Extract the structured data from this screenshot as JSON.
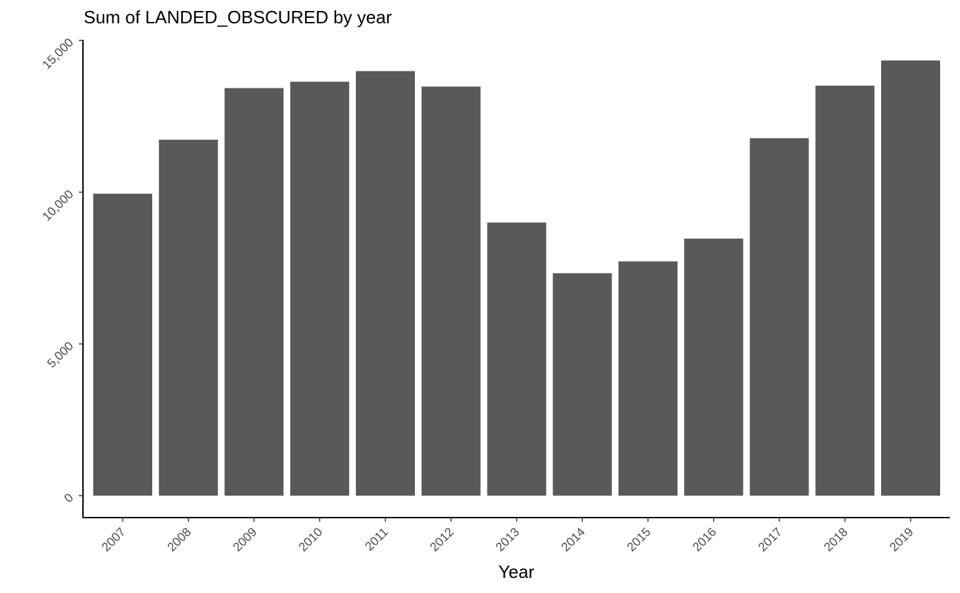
{
  "chart_data": {
    "type": "bar",
    "title": "Sum of LANDED_OBSCURED by year",
    "xlabel": "Year",
    "ylabel": "",
    "categories": [
      "2007",
      "2008",
      "2009",
      "2010",
      "2011",
      "2012",
      "2013",
      "2014",
      "2015",
      "2016",
      "2017",
      "2018",
      "2019"
    ],
    "values": [
      9950,
      11730,
      13430,
      13640,
      13990,
      13480,
      9000,
      7330,
      7720,
      8470,
      11780,
      13510,
      14340
    ],
    "ylim": [
      0,
      15000
    ],
    "yticks": [
      0,
      5000,
      10000,
      15000
    ],
    "ytick_labels": [
      "0",
      "5,000",
      "10,000",
      "15,000"
    ],
    "grid": false,
    "legend": "none",
    "bar_color": "#595959"
  }
}
